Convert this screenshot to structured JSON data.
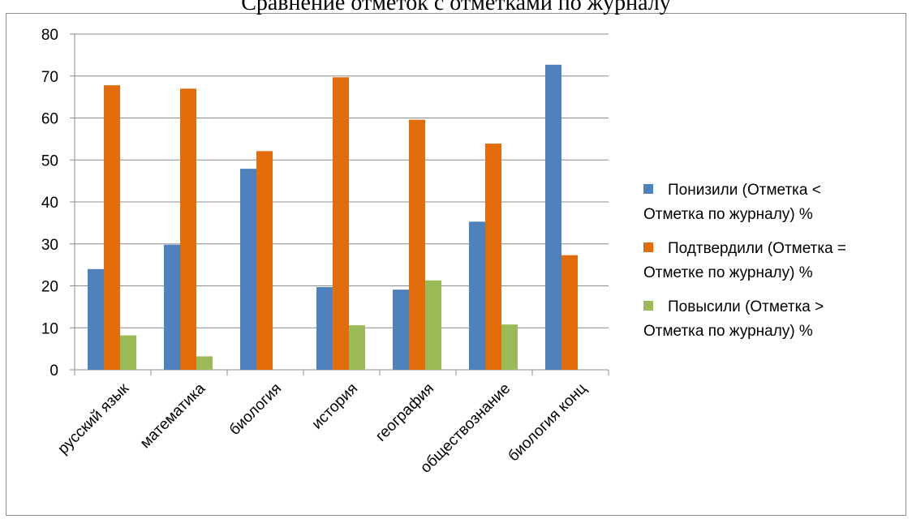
{
  "chart_data": {
    "type": "bar",
    "title": "Сравнение отметок с отметками по журналу",
    "xlabel": "",
    "ylabel": "",
    "ylim": [
      0,
      80
    ],
    "yticks": [
      0,
      10,
      20,
      30,
      40,
      50,
      60,
      70,
      80
    ],
    "grid": true,
    "legend_position": "right",
    "categories": [
      "русский язык",
      "математика",
      "биология",
      "история",
      "география",
      "обществознание",
      "биология конц"
    ],
    "series": [
      {
        "name": "Понизили (Отметка < Отметка по журналу) %",
        "color": "#4f81bd",
        "values": [
          24,
          29.8,
          47.9,
          19.7,
          19.1,
          35.3,
          72.7
        ]
      },
      {
        "name": "Подтвердили (Отметка = Отметке по журналу) %",
        "color": "#e36c0a",
        "values": [
          67.8,
          67.0,
          52.1,
          69.7,
          59.6,
          53.9,
          27.3
        ]
      },
      {
        "name": "Повысили (Отметка > Отметка по журналу) %",
        "color": "#9bbb59",
        "values": [
          8.2,
          3.2,
          0,
          10.6,
          21.3,
          10.8,
          0
        ]
      }
    ]
  },
  "legend": {
    "items": [
      {
        "text": "Понизили (Отметка <\nОтметка по журналу) %",
        "color": "#4f81bd"
      },
      {
        "text": "Подтвердили (Отметка =\nОтметке по журналу) %",
        "color": "#e36c0a"
      },
      {
        "text": "Повысили (Отметка >\nОтметка по журналу) %",
        "color": "#9bbb59"
      }
    ]
  }
}
